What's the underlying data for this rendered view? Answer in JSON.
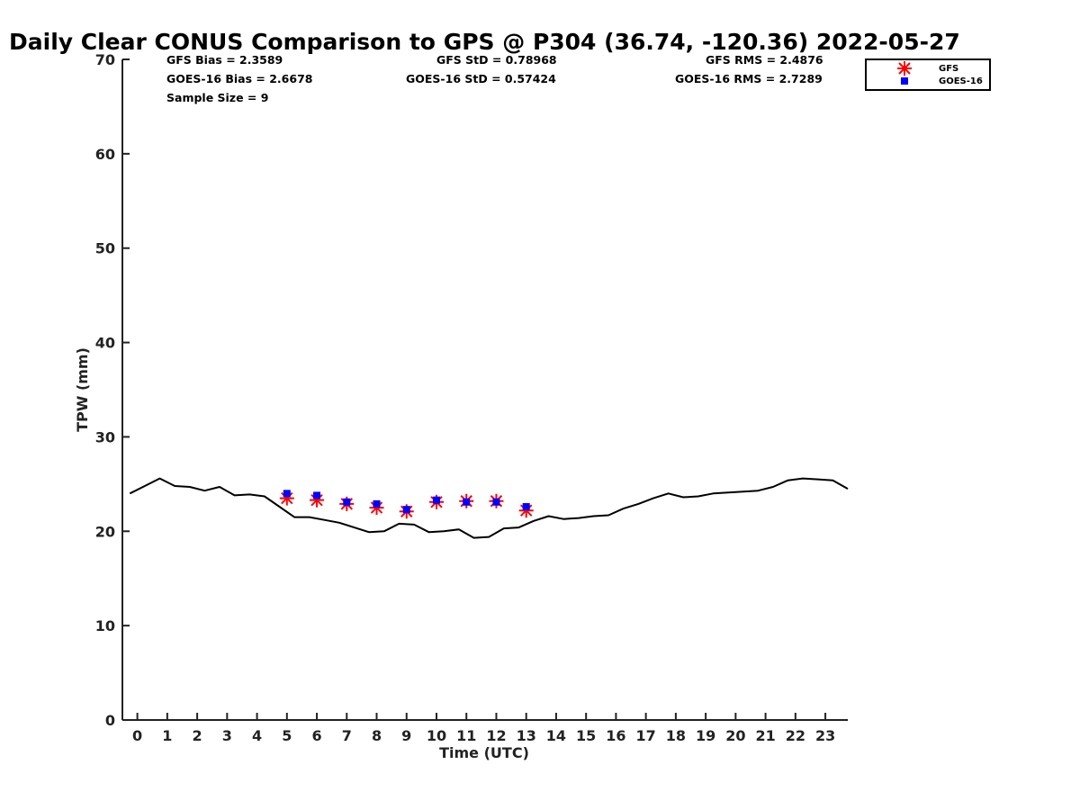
{
  "chart_data": {
    "type": "scatter",
    "title": "Daily Clear CONUS Comparison to GPS @ P304 (36.74, -120.36) 2022-05-27",
    "xlabel": "Time (UTC)",
    "ylabel": "TPW (mm)",
    "xlim": [
      -0.5,
      23.75
    ],
    "ylim": [
      0,
      70
    ],
    "x_ticks": [
      0,
      1,
      2,
      3,
      4,
      5,
      6,
      7,
      8,
      9,
      10,
      11,
      12,
      13,
      14,
      15,
      16,
      17,
      18,
      19,
      20,
      21,
      22,
      23
    ],
    "y_ticks": [
      0,
      10,
      20,
      30,
      40,
      50,
      60,
      70
    ],
    "grid": false,
    "legend_position": "top-right",
    "stats": {
      "gfs_bias": "GFS Bias = 2.3589",
      "goes_bias": "GOES-16 Bias = 2.6678",
      "sample_size": "Sample Size = 9",
      "gfs_std": "GFS StD = 0.78968",
      "goes_std": "GOES-16 StD = 0.57424",
      "gfs_rms": "GFS RMS = 2.4876",
      "goes_rms": "GOES-16 RMS = 2.7289"
    },
    "series": [
      {
        "name": "GPS",
        "style": "line",
        "color": "#000000",
        "x": [
          -0.25,
          0.25,
          0.75,
          1.25,
          1.75,
          2.25,
          2.75,
          3.25,
          3.75,
          4.25,
          4.75,
          5.25,
          5.75,
          6.25,
          6.75,
          7.25,
          7.75,
          8.25,
          8.75,
          9.25,
          9.75,
          10.25,
          10.75,
          11.25,
          11.75,
          12.25,
          12.75,
          13.25,
          13.75,
          14.25,
          14.75,
          15.25,
          15.75,
          16.25,
          16.75,
          17.25,
          17.75,
          18.25,
          18.75,
          19.25,
          19.75,
          20.25,
          20.75,
          21.25,
          21.75,
          22.25,
          22.75,
          23.25,
          23.75
        ],
        "y": [
          24.0,
          24.8,
          25.6,
          24.8,
          24.7,
          24.3,
          24.7,
          23.8,
          23.9,
          23.7,
          22.6,
          21.5,
          21.5,
          21.2,
          20.9,
          20.4,
          19.9,
          20.0,
          20.8,
          20.7,
          19.9,
          20.0,
          20.2,
          19.3,
          19.4,
          20.3,
          20.4,
          21.1,
          21.6,
          21.3,
          21.4,
          21.6,
          21.7,
          22.4,
          22.9,
          23.5,
          24.0,
          23.6,
          23.7,
          24.0,
          24.1,
          24.2,
          24.3,
          24.7,
          25.4,
          25.6,
          25.5,
          25.4,
          24.5
        ]
      },
      {
        "name": "GFS",
        "style": "marker-asterisk",
        "color": "#ff0000",
        "x": [
          5,
          6,
          7,
          8,
          9,
          10,
          11,
          12,
          13
        ],
        "y": [
          23.5,
          23.3,
          22.9,
          22.5,
          22.1,
          23.1,
          23.2,
          23.2,
          22.2
        ]
      },
      {
        "name": "GOES-16",
        "style": "marker-square",
        "color": "#0000ff",
        "x": [
          5,
          6,
          7,
          8,
          9,
          10,
          11,
          12,
          13
        ],
        "y": [
          24.0,
          23.8,
          23.1,
          22.9,
          22.3,
          23.3,
          23.1,
          23.1,
          22.6
        ]
      }
    ]
  }
}
